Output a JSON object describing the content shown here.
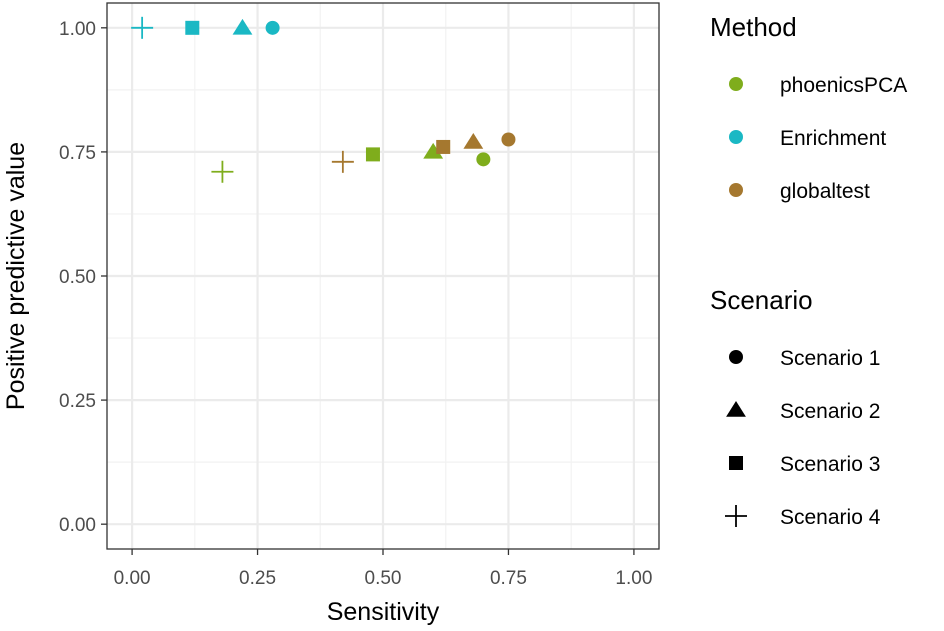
{
  "chart_data": {
    "type": "scatter",
    "xlabel": "Sensitivity",
    "ylabel": "Positive predictive value",
    "xlim": [
      -0.05,
      1.05
    ],
    "ylim": [
      -0.05,
      1.05
    ],
    "x_ticks": [
      "0.00",
      "0.25",
      "0.50",
      "0.75",
      "1.00"
    ],
    "y_ticks": [
      "0.00",
      "0.25",
      "0.50",
      "0.75",
      "1.00"
    ],
    "grid": true,
    "legend_position": "right",
    "legends": {
      "method": {
        "title": "Method",
        "entries": [
          {
            "label": "phoenicsPCA",
            "color": "#7fad1c"
          },
          {
            "label": "Enrichment",
            "color": "#1ab8c4"
          },
          {
            "label": "globaltest",
            "color": "#a5782f"
          }
        ]
      },
      "scenario": {
        "title": "Scenario",
        "entries": [
          {
            "label": "Scenario 1",
            "shape": "circle"
          },
          {
            "label": "Scenario 2",
            "shape": "triangle"
          },
          {
            "label": "Scenario 3",
            "shape": "square"
          },
          {
            "label": "Scenario 4",
            "shape": "plus"
          }
        ]
      }
    },
    "points": [
      {
        "method": "Enrichment",
        "scenario": "Scenario 4",
        "x": 0.02,
        "y": 1.0
      },
      {
        "method": "Enrichment",
        "scenario": "Scenario 3",
        "x": 0.12,
        "y": 1.0
      },
      {
        "method": "Enrichment",
        "scenario": "Scenario 2",
        "x": 0.22,
        "y": 1.0
      },
      {
        "method": "Enrichment",
        "scenario": "Scenario 1",
        "x": 0.28,
        "y": 1.0
      },
      {
        "method": "phoenicsPCA",
        "scenario": "Scenario 4",
        "x": 0.18,
        "y": 0.71
      },
      {
        "method": "globaltest",
        "scenario": "Scenario 4",
        "x": 0.42,
        "y": 0.73
      },
      {
        "method": "phoenicsPCA",
        "scenario": "Scenario 3",
        "x": 0.48,
        "y": 0.745
      },
      {
        "method": "phoenicsPCA",
        "scenario": "Scenario 2",
        "x": 0.6,
        "y": 0.75
      },
      {
        "method": "globaltest",
        "scenario": "Scenario 3",
        "x": 0.62,
        "y": 0.76
      },
      {
        "method": "globaltest",
        "scenario": "Scenario 2",
        "x": 0.68,
        "y": 0.77
      },
      {
        "method": "phoenicsPCA",
        "scenario": "Scenario 1",
        "x": 0.7,
        "y": 0.735
      },
      {
        "method": "globaltest",
        "scenario": "Scenario 1",
        "x": 0.75,
        "y": 0.775
      }
    ]
  }
}
